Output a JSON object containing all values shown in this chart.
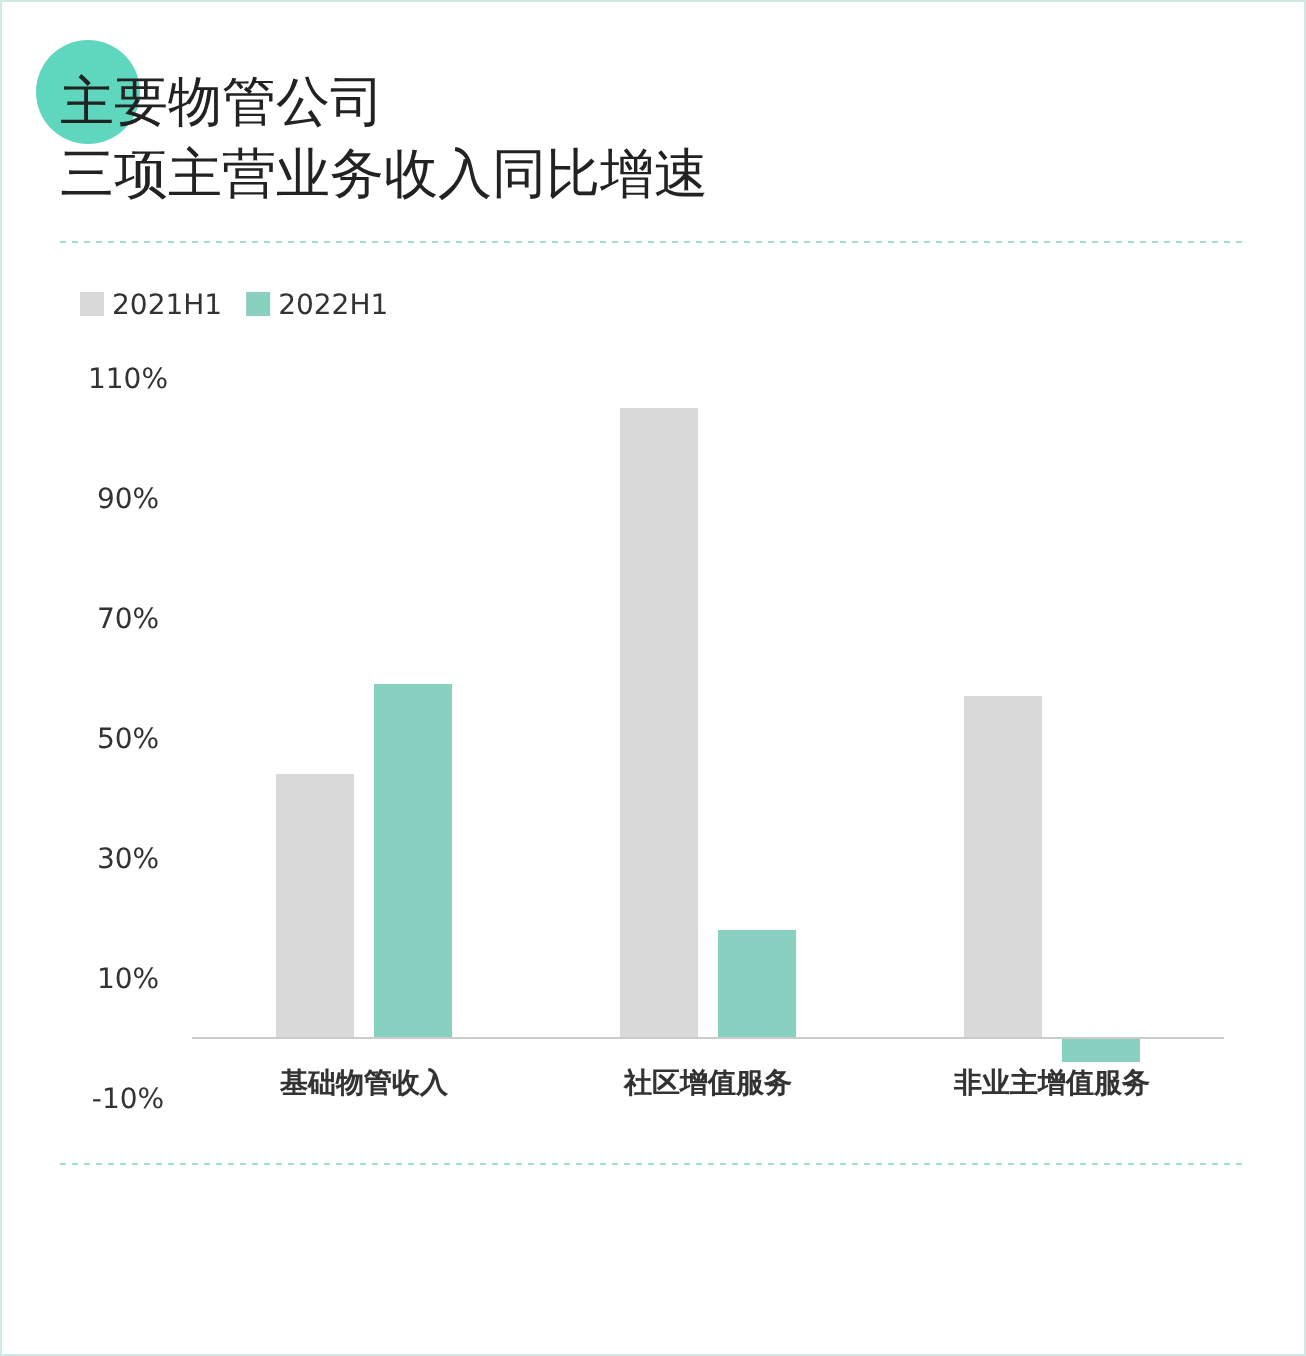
{
  "chart_data": {
    "type": "bar",
    "title": "主要物管公司",
    "subtitle": "三项主营业务收入同比增速",
    "categories": [
      "基础物管收入",
      "社区增值服务",
      "非业主增值服务"
    ],
    "series": [
      {
        "name": "2021H1",
        "color": "#d9d9d9",
        "values": [
          44,
          105,
          57
        ]
      },
      {
        "name": "2022H1",
        "color": "#88d0c0",
        "values": [
          59,
          18,
          -4
        ]
      }
    ],
    "ylim": [
      -10,
      110
    ],
    "yticks": [
      {
        "value": -10,
        "label": "-10%"
      },
      {
        "value": 10,
        "label": "10%"
      },
      {
        "value": 30,
        "label": "30%"
      },
      {
        "value": 50,
        "label": "50%"
      },
      {
        "value": 70,
        "label": "70%"
      },
      {
        "value": 90,
        "label": "90%"
      },
      {
        "value": 110,
        "label": "110%"
      }
    ],
    "grid": false,
    "legend": "top left"
  }
}
